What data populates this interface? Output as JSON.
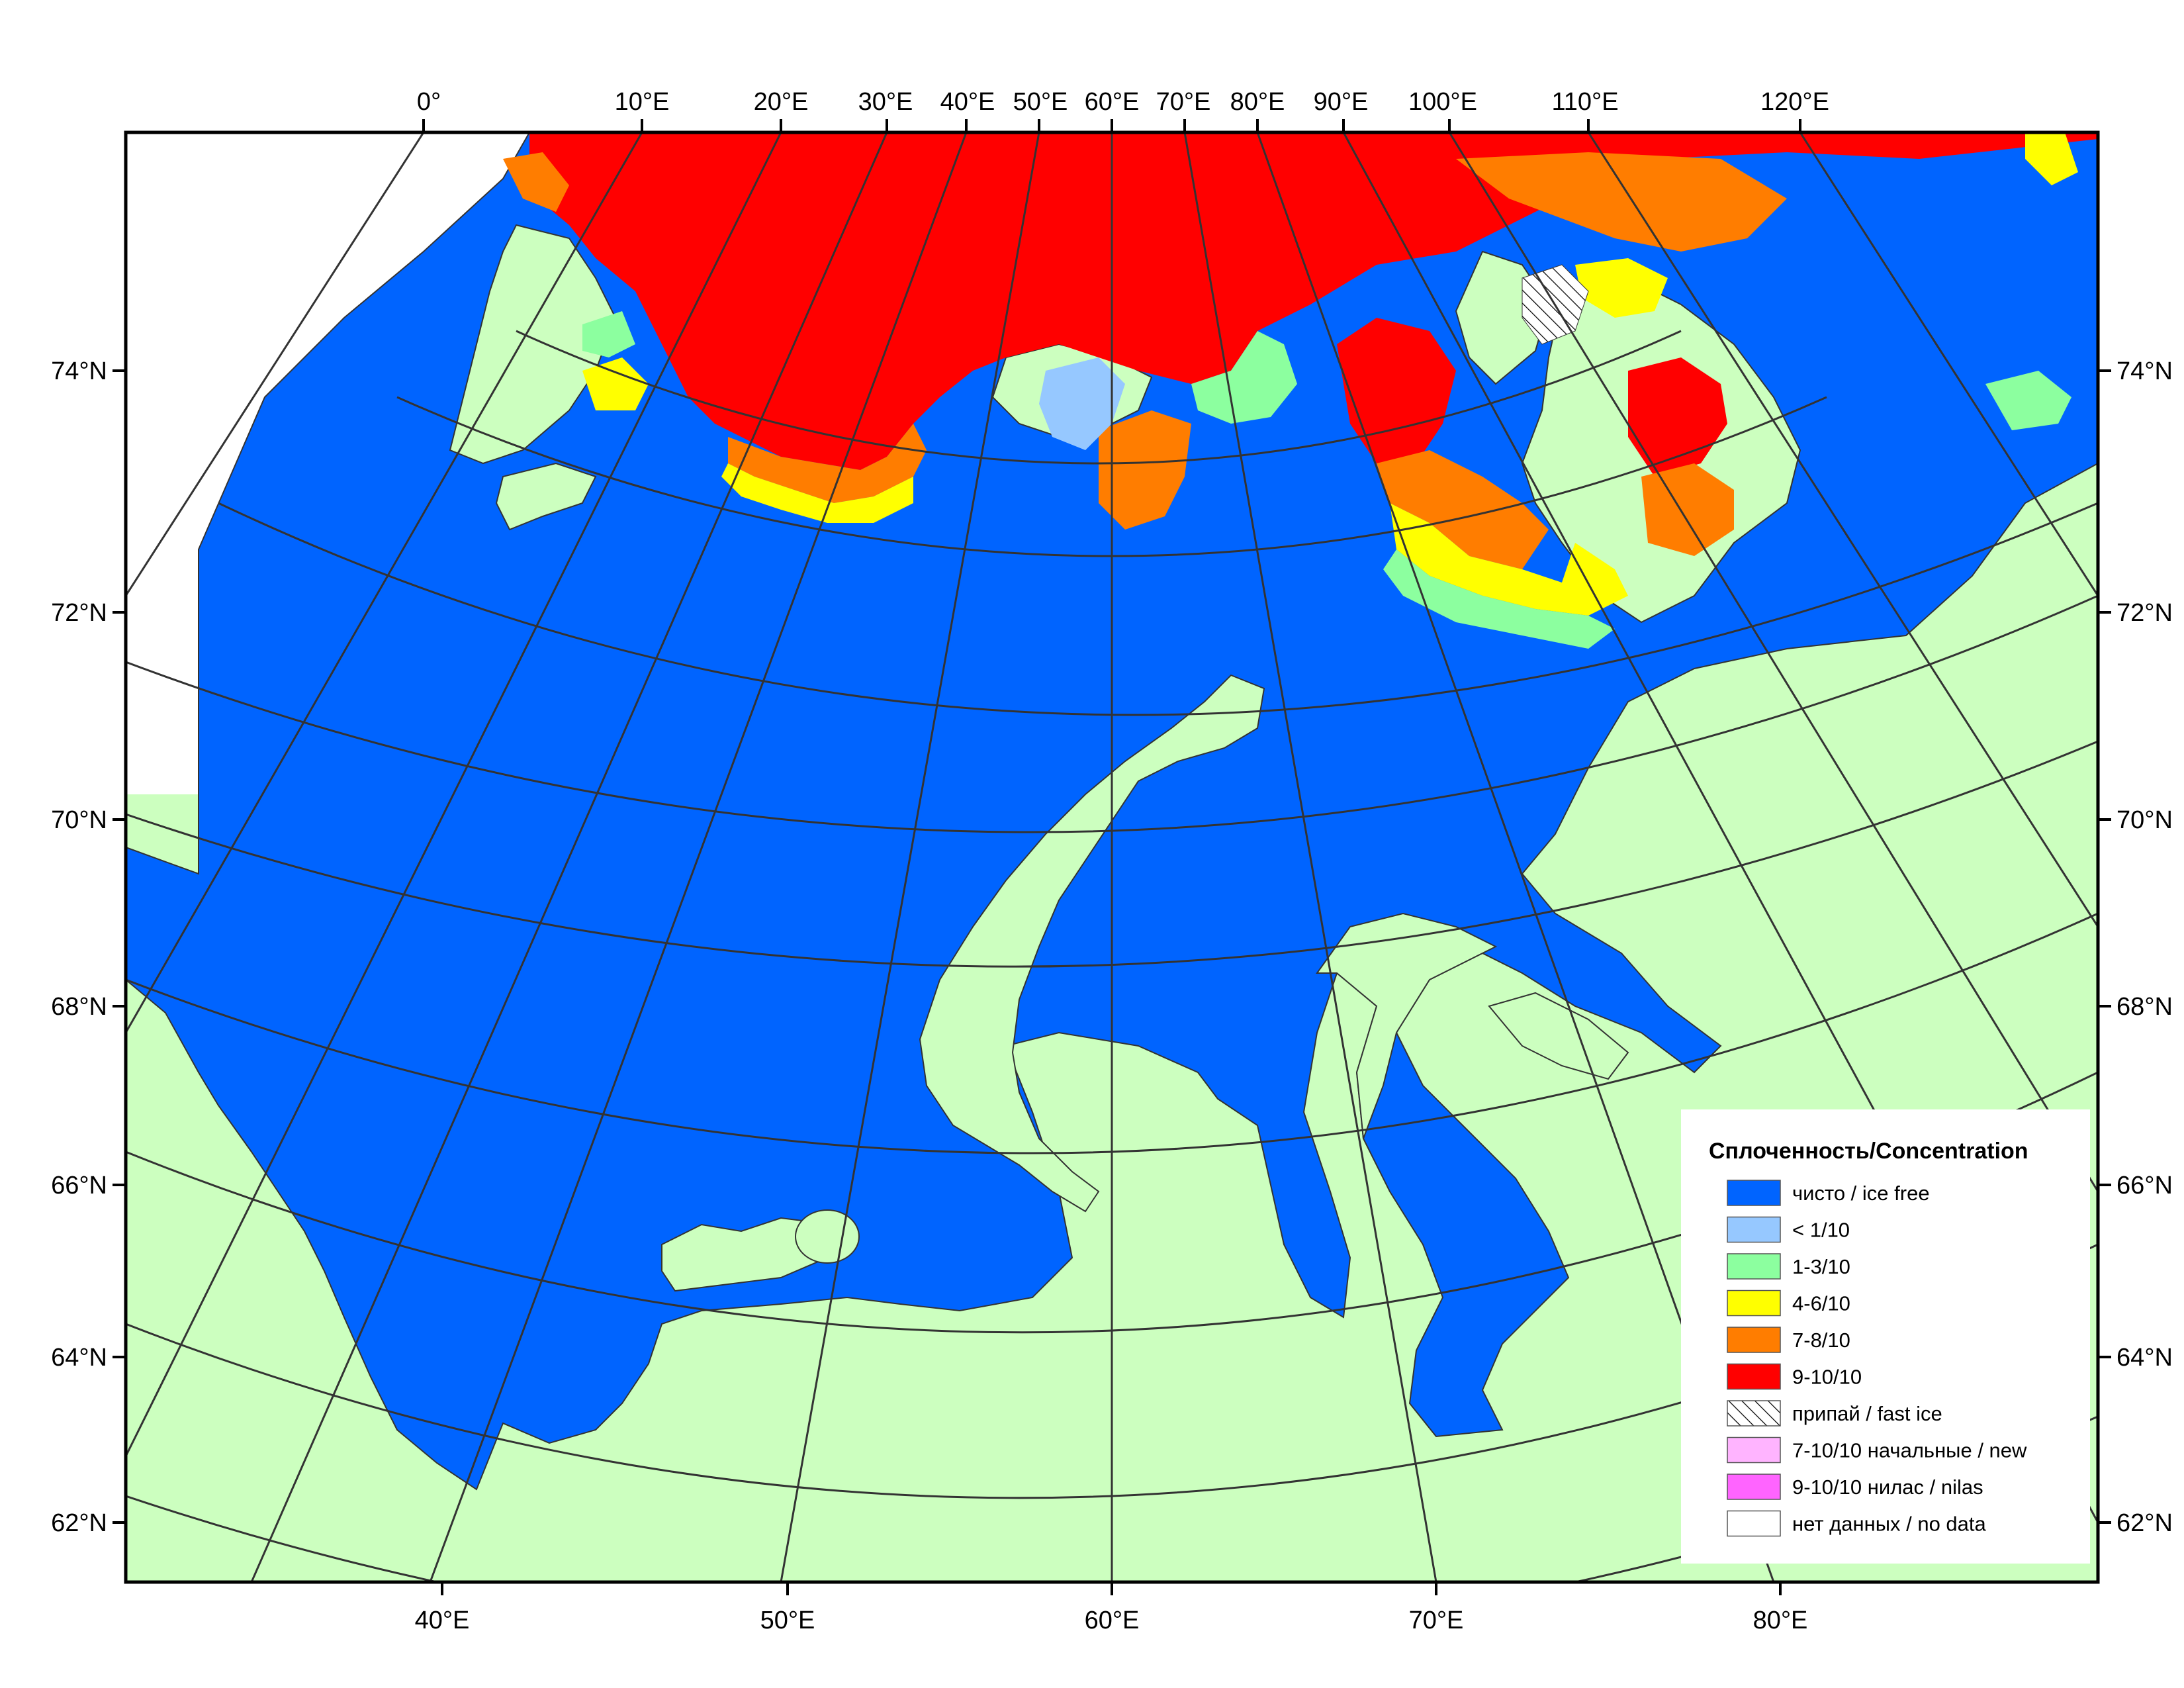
{
  "map": {
    "top_lon_labels": [
      "0°",
      "10°E",
      "20°E",
      "30°E",
      "40°E",
      "50°E",
      "60°E",
      "70°E",
      "80°E",
      "90°E",
      "100°E",
      "110°E",
      "120°E"
    ],
    "bottom_lon_labels": [
      "40°E",
      "50°E",
      "60°E",
      "70°E",
      "80°E"
    ],
    "lat_labels": [
      "74°N",
      "72°N",
      "70°N",
      "68°N",
      "66°N",
      "64°N",
      "62°N"
    ],
    "colors": {
      "land": "#ccffbf",
      "ice_free": "#0064ff",
      "lt_1_10": "#96c8ff",
      "c1_3": "#8cff9f",
      "c4_6": "#ffff00",
      "c7_8": "#ff7d00",
      "c9_10": "#ff0000",
      "no_data": "#ffffff",
      "new_ice": "#ffb4ff",
      "nilas": "#ff64ff"
    }
  },
  "legend": {
    "title": "Сплоченность/Concentration",
    "items": [
      {
        "label": "чисто / ice free",
        "color": "#0064ff",
        "pattern": "solid"
      },
      {
        "label": "< 1/10",
        "color": "#96c8ff",
        "pattern": "solid"
      },
      {
        "label": "1-3/10",
        "color": "#8cff9f",
        "pattern": "solid"
      },
      {
        "label": "4-6/10",
        "color": "#ffff00",
        "pattern": "solid"
      },
      {
        "label": "7-8/10",
        "color": "#ff7d00",
        "pattern": "solid"
      },
      {
        "label": "9-10/10",
        "color": "#ff0000",
        "pattern": "solid"
      },
      {
        "label": "припай / fast ice",
        "color": "#ffffff",
        "pattern": "hatch"
      },
      {
        "label": "7-10/10 начальные / new",
        "color": "#ffb4ff",
        "pattern": "solid"
      },
      {
        "label": "9-10/10 нилас / nilas",
        "color": "#ff64ff",
        "pattern": "solid"
      },
      {
        "label": "нет данных / no data",
        "color": "#ffffff",
        "pattern": "solid"
      }
    ]
  }
}
